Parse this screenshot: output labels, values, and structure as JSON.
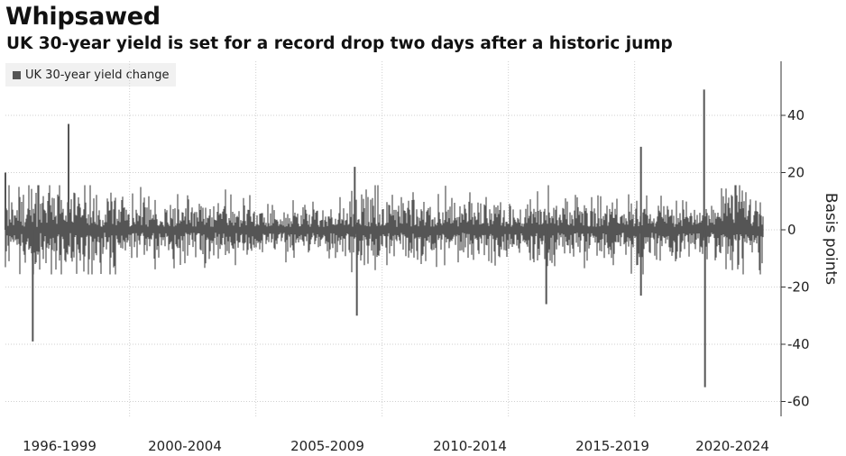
{
  "chart_data": {
    "type": "bar",
    "title": "Whipsawed",
    "subtitle": "UK 30-year yield is set for a record drop two days after a historic jump",
    "legend": [
      {
        "name": "UK 30-year yield change",
        "color": "#555555"
      }
    ],
    "ylabel": "Basis points",
    "ylim": [
      -65,
      60
    ],
    "yticks": [
      -60,
      -40,
      -20,
      0,
      20,
      40
    ],
    "ytick_labels": [
      "-60",
      "-40",
      "-20",
      "0",
      "20",
      "40"
    ],
    "x_period_labels": [
      "1996-1999",
      "2000-2004",
      "2005-2009",
      "2010-2014",
      "2015-2019",
      "2020-2024"
    ],
    "x_range": [
      "1995-01",
      "2025-01"
    ],
    "grid": "dotted",
    "legend_position": "top-left",
    "series": [
      {
        "name": "UK 30-year yield change",
        "typical_daily_range": [
          -12,
          12
        ],
        "notable_values": [
          {
            "date": "1995-01",
            "value": 20
          },
          {
            "date": "1996-02",
            "value": -39
          },
          {
            "date": "1997-07",
            "value": 37
          },
          {
            "date": "2008-11",
            "value": 22
          },
          {
            "date": "2008-12",
            "value": -30
          },
          {
            "date": "2016-06",
            "value": -26
          },
          {
            "date": "2020-03",
            "value": 29
          },
          {
            "date": "2020-03",
            "value": -23
          },
          {
            "date": "2022-09",
            "value": 49
          },
          {
            "date": "2022-09",
            "value": -55
          }
        ]
      }
    ]
  }
}
